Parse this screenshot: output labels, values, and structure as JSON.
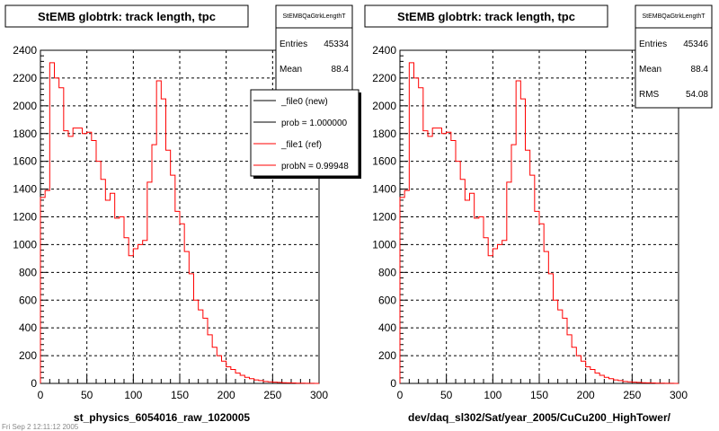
{
  "chart_data": [
    {
      "type": "histogram",
      "title": "StEMB globtrk: track length, tpc",
      "xlabel": "st_physics_6054016_raw_1020005",
      "xlim": [
        0,
        300
      ],
      "ylim": [
        0,
        2400
      ],
      "x_ticks": [
        "0",
        "50",
        "100",
        "150",
        "200",
        "250",
        "300"
      ],
      "y_ticks": [
        "0",
        "200",
        "400",
        "600",
        "800",
        "1000",
        "1200",
        "1400",
        "1600",
        "1800",
        "2000",
        "2200",
        "2400"
      ],
      "grid": true,
      "stats": {
        "name": "StEMBQaGtrkLengthT",
        "rows": [
          {
            "label": "Entries",
            "value": "45334"
          },
          {
            "label": "Mean",
            "value": "88.4"
          }
        ]
      },
      "legend": {
        "placement": "top-right",
        "entries": [
          {
            "label": "_file0 (new)",
            "color": "#000000"
          },
          {
            "label": "prob = 1.000000",
            "color": "#000000"
          },
          {
            "label": "_file1 (ref)",
            "color": "#ff0000"
          },
          {
            "label": "probN = 0.99948",
            "color": "#ff0000"
          }
        ]
      },
      "bin_width": 5,
      "series": [
        {
          "name": "_file1 (ref)",
          "color": "#ff0000",
          "x": [
            0,
            5,
            10,
            15,
            20,
            25,
            30,
            35,
            40,
            45,
            50,
            55,
            60,
            65,
            70,
            75,
            80,
            85,
            90,
            95,
            100,
            105,
            110,
            115,
            120,
            125,
            130,
            135,
            140,
            145,
            150,
            155,
            160,
            165,
            170,
            175,
            180,
            185,
            190,
            195,
            200,
            205,
            210,
            215,
            220,
            225,
            230,
            235,
            240,
            245,
            250,
            255,
            260,
            265,
            270,
            275,
            280,
            285,
            290,
            295
          ],
          "values": [
            1340,
            1390,
            2310,
            2200,
            2130,
            1820,
            1780,
            1840,
            1840,
            1800,
            1810,
            1750,
            1600,
            1470,
            1320,
            1370,
            1190,
            1200,
            1050,
            920,
            970,
            1000,
            1030,
            1450,
            1720,
            2180,
            2050,
            1680,
            1500,
            1240,
            1150,
            950,
            790,
            600,
            530,
            470,
            350,
            260,
            200,
            160,
            120,
            100,
            75,
            58,
            44,
            34,
            25,
            20,
            14,
            11,
            9,
            7,
            5,
            4,
            3,
            2,
            2,
            1,
            1,
            0
          ]
        }
      ]
    },
    {
      "type": "histogram",
      "title": "StEMB globtrk: track length, tpc",
      "xlabel": "dev/daq_sl302/Sat/year_2005/CuCu200_HighTower/",
      "xlim": [
        0,
        300
      ],
      "ylim": [
        0,
        2400
      ],
      "x_ticks": [
        "0",
        "50",
        "100",
        "150",
        "200",
        "250",
        "300"
      ],
      "y_ticks": [
        "0",
        "200",
        "400",
        "600",
        "800",
        "1000",
        "1200",
        "1400",
        "1600",
        "1800",
        "2000",
        "2200",
        "2400"
      ],
      "grid": true,
      "stats": {
        "name": "StEMBQaGtrkLengthT",
        "rows": [
          {
            "label": "Entries",
            "value": "45346"
          },
          {
            "label": "Mean",
            "value": "88.4"
          },
          {
            "label": "RMS",
            "value": "54.08"
          }
        ]
      },
      "bin_width": 5,
      "series": [
        {
          "color": "#ff0000",
          "x": [
            0,
            5,
            10,
            15,
            20,
            25,
            30,
            35,
            40,
            45,
            50,
            55,
            60,
            65,
            70,
            75,
            80,
            85,
            90,
            95,
            100,
            105,
            110,
            115,
            120,
            125,
            130,
            135,
            140,
            145,
            150,
            155,
            160,
            165,
            170,
            175,
            180,
            185,
            190,
            195,
            200,
            205,
            210,
            215,
            220,
            225,
            230,
            235,
            240,
            245,
            250,
            255,
            260,
            265,
            270,
            275,
            280,
            285,
            290,
            295
          ],
          "values": [
            1340,
            1390,
            2310,
            2200,
            2130,
            1820,
            1780,
            1840,
            1840,
            1800,
            1810,
            1750,
            1600,
            1470,
            1320,
            1370,
            1190,
            1200,
            1050,
            920,
            970,
            1000,
            1030,
            1450,
            1720,
            2180,
            2050,
            1680,
            1500,
            1240,
            1150,
            950,
            790,
            600,
            530,
            470,
            350,
            260,
            200,
            160,
            120,
            100,
            75,
            58,
            44,
            34,
            25,
            20,
            14,
            11,
            9,
            7,
            5,
            4,
            3,
            2,
            2,
            1,
            1,
            0
          ]
        }
      ]
    }
  ],
  "footer_left": "Fri Sep 2 12:11:12 2005"
}
